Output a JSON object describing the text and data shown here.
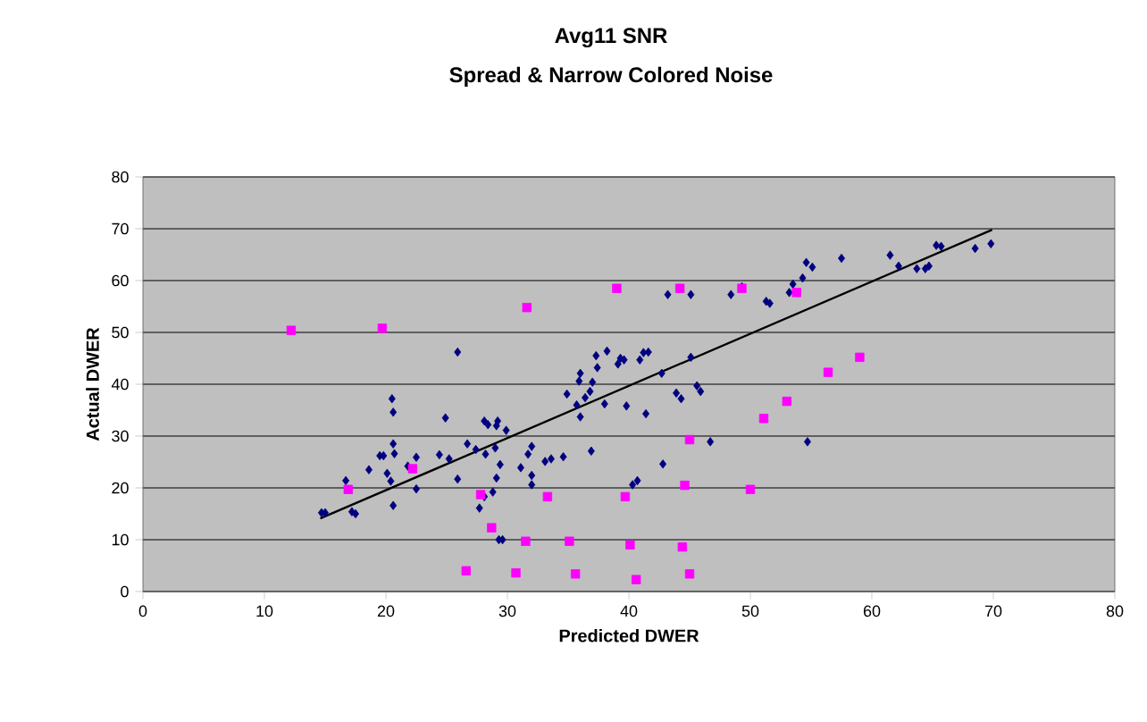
{
  "chart_data": {
    "type": "scatter",
    "title": "Avg11 SNR",
    "subtitle": "Spread & Narrow Colored Noise",
    "xlabel": "Predicted DWER",
    "ylabel": "Actual DWER",
    "xlim": [
      0,
      80
    ],
    "ylim": [
      0,
      80
    ],
    "xticks": [
      0,
      10,
      20,
      30,
      40,
      50,
      60,
      70,
      80
    ],
    "yticks": [
      0,
      10,
      20,
      30,
      40,
      50,
      60,
      70,
      80
    ],
    "grid": "y",
    "series": [
      {
        "color": "#000080",
        "marker": "diamond",
        "x": [
          14.7,
          15.0,
          16.7,
          17.2,
          17.5,
          18.6,
          19.5,
          19.8,
          20.1,
          20.4,
          20.5,
          20.6,
          20.6,
          20.7,
          20.6,
          21.8,
          22.5,
          22.5,
          24.4,
          24.9,
          25.9,
          25.9,
          25.2,
          26.7,
          27.4,
          28.2,
          28.1,
          28.4,
          29.2,
          29.1,
          29.9,
          29.0,
          29.4,
          29.1,
          28.8,
          28.1,
          27.7,
          29.3,
          29.6,
          31.1,
          31.7,
          32.0,
          32.0,
          32.0,
          33.1,
          33.6,
          34.6,
          34.9,
          36.0,
          35.7,
          35.9,
          36.0,
          36.4,
          36.8,
          37.0,
          36.9,
          37.3,
          37.4,
          38.0,
          38.2,
          39.1,
          39.3,
          39.6,
          39.8,
          40.3,
          40.7,
          40.9,
          41.2,
          41.6,
          41.4,
          42.7,
          42.8,
          43.2,
          43.9,
          44.3,
          45.1,
          45.1,
          45.6,
          45.9,
          46.7,
          48.4,
          49.3,
          51.3,
          51.6,
          53.2,
          53.5,
          54.3,
          54.6,
          55.1,
          57.5,
          54.7,
          61.5,
          62.2,
          63.7,
          64.4,
          64.7,
          65.3,
          65.7,
          68.5,
          69.8
        ],
        "values": [
          15.2,
          15.2,
          21.4,
          15.4,
          15.0,
          23.5,
          26.2,
          26.2,
          22.8,
          21.3,
          37.2,
          34.6,
          28.5,
          26.6,
          16.6,
          24.2,
          25.9,
          19.8,
          26.4,
          33.5,
          46.2,
          21.7,
          25.6,
          28.5,
          27.4,
          26.5,
          32.9,
          32.2,
          32.9,
          32.0,
          31.1,
          27.7,
          24.5,
          21.9,
          19.2,
          18.3,
          16.1,
          10.0,
          10.0,
          23.9,
          26.5,
          28.0,
          22.4,
          20.6,
          25.1,
          25.6,
          26.0,
          38.1,
          33.7,
          36.0,
          40.6,
          42.1,
          37.4,
          38.6,
          40.4,
          27.1,
          45.5,
          43.2,
          36.2,
          46.4,
          43.9,
          45.0,
          44.7,
          35.8,
          20.6,
          21.4,
          44.7,
          46.1,
          46.2,
          34.3,
          42.1,
          24.6,
          57.3,
          38.3,
          37.2,
          57.3,
          45.2,
          39.7,
          38.6,
          28.9,
          57.3,
          58.8,
          56.0,
          55.6,
          57.7,
          59.3,
          60.5,
          63.5,
          62.6,
          64.3,
          28.9,
          64.9,
          62.8,
          62.3,
          62.3,
          62.8,
          66.8,
          66.6,
          66.2,
          67.1
        ]
      },
      {
        "color": "#ff00ff",
        "marker": "square",
        "x": [
          12.2,
          19.7,
          16.9,
          22.2,
          26.6,
          27.8,
          28.7,
          31.6,
          31.5,
          30.7,
          33.3,
          35.1,
          35.6,
          39.0,
          39.7,
          40.1,
          40.6,
          44.2,
          44.6,
          44.4,
          45.0,
          45.0,
          49.3,
          50.0,
          51.1,
          53.8,
          53.0,
          56.4,
          59.0
        ],
        "values": [
          50.4,
          50.8,
          19.7,
          23.7,
          4.0,
          18.7,
          12.3,
          54.8,
          9.7,
          3.6,
          18.3,
          9.7,
          3.4,
          58.5,
          18.3,
          9.0,
          2.3,
          58.5,
          20.5,
          8.6,
          29.3,
          3.4,
          58.5,
          19.7,
          33.4,
          57.7,
          36.7,
          42.3,
          45.2
        ]
      },
      {
        "type": "line",
        "color": "#000000",
        "marker": "none",
        "x": [
          14.6,
          69.9
        ],
        "values": [
          14.1,
          69.8
        ]
      }
    ]
  }
}
